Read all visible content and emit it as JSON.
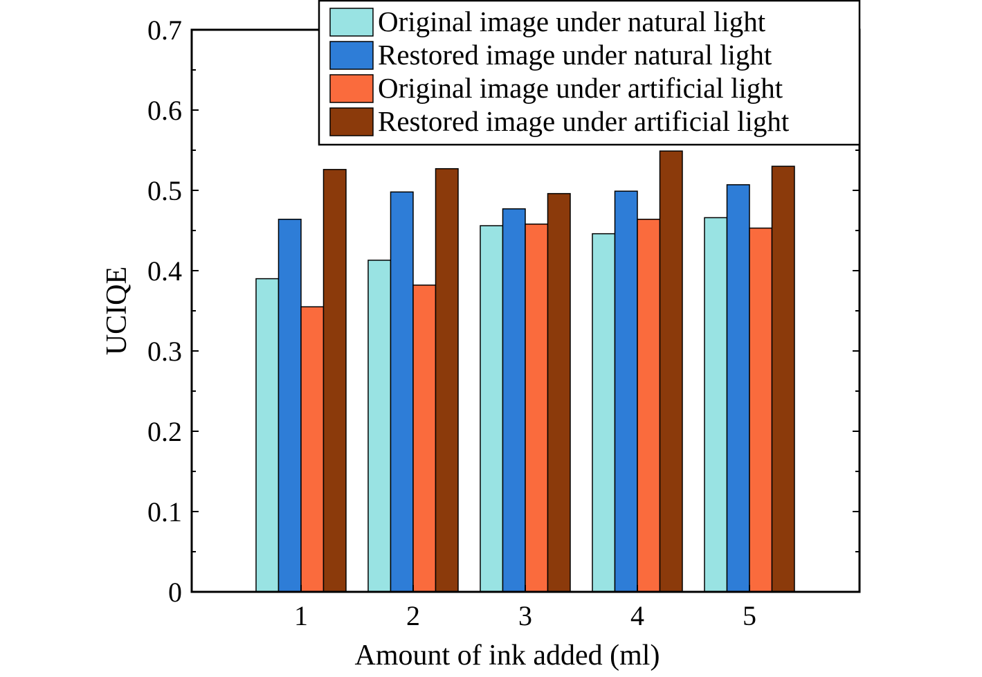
{
  "chart_data": {
    "type": "bar",
    "title": "",
    "xlabel": "Amount of ink added (ml)",
    "ylabel": "UCIQE",
    "categories": [
      "1",
      "2",
      "3",
      "4",
      "5"
    ],
    "ylim": [
      0,
      0.7
    ],
    "yticks": [
      "0",
      "0.1",
      "0.2",
      "0.3",
      "0.4",
      "0.5",
      "0.6",
      "0.7"
    ],
    "grid": false,
    "legend_position": "top-right",
    "series": [
      {
        "name": "Original image under natural light",
        "color": "#99E3E3",
        "values": [
          0.39,
          0.413,
          0.456,
          0.446,
          0.466
        ]
      },
      {
        "name": "Restored image under natural light",
        "color": "#2E7DD7",
        "values": [
          0.464,
          0.498,
          0.477,
          0.499,
          0.507
        ]
      },
      {
        "name": "Original image under artificial light",
        "color": "#FA6B3D",
        "values": [
          0.355,
          0.382,
          0.458,
          0.464,
          0.453
        ]
      },
      {
        "name": "Restored image under artificial light",
        "color": "#8B3A0B",
        "values": [
          0.526,
          0.527,
          0.496,
          0.549,
          0.53
        ]
      }
    ]
  }
}
